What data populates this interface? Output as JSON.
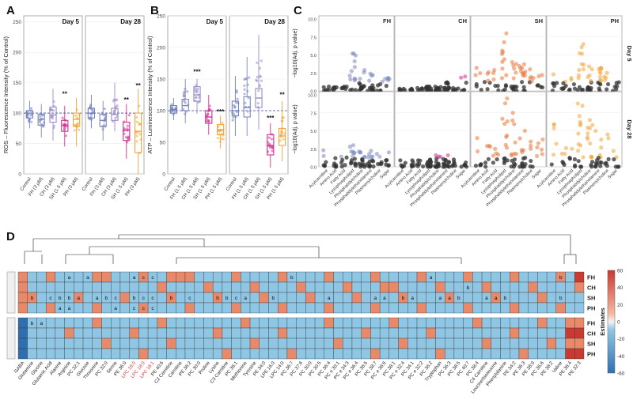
{
  "panel_letters": [
    "A",
    "B",
    "C",
    "D"
  ],
  "colors": {
    "Control": "#6f7fc0",
    "FH": "#7b86bd",
    "CH": "#9a8cc7",
    "SH": "#d0328f",
    "PH": "#f0a63a",
    "SH_ox": "#e8783b",
    "heat_pos": "#e8896a",
    "heat_neg": "#8fc6e3",
    "heat_strong_pos": "#c93a30",
    "heat_strong_neg": "#2f6fb0",
    "label_red": "#d23a3a"
  },
  "chart_data": [
    {
      "panel": "A",
      "type": "scatter",
      "ylabel": "ROS – Fluorescence Intensity (% of Control)",
      "ylim": [
        0,
        260
      ],
      "yticks": [
        0,
        50,
        100,
        150,
        200,
        250
      ],
      "facets": [
        "Day 5",
        "Day 28"
      ],
      "categories": [
        "Control",
        "FH (3 µM)",
        "CH (3 µM)",
        "SH (1.5 µM)",
        "PH (3 µM)"
      ],
      "reference_line": 100,
      "significance": [
        {
          "facet": "Day 5",
          "category": "SH (1.5 µM)",
          "label": "**",
          "y": 128
        },
        {
          "facet": "Day 28",
          "category": "SH (1.5 µM)",
          "label": "**",
          "y": 118
        },
        {
          "facet": "Day 28",
          "category": "PH (3 µM)",
          "label": "**",
          "y": 142
        }
      ],
      "boxes": {
        "Day 5": [
          {
            "category": "Control",
            "q1": 92,
            "median": 100,
            "q3": 104,
            "min": 75,
            "max": 120
          },
          {
            "category": "FH (3 µM)",
            "q1": 80,
            "median": 90,
            "q3": 98,
            "min": 60,
            "max": 115
          },
          {
            "category": "CH (3 µM)",
            "q1": 85,
            "median": 97,
            "q3": 110,
            "min": 55,
            "max": 140
          },
          {
            "category": "SH (1.5 µM)",
            "q1": 70,
            "median": 80,
            "q3": 88,
            "min": 45,
            "max": 112
          },
          {
            "category": "PH (3 µM)",
            "q1": 78,
            "median": 90,
            "q3": 100,
            "min": 45,
            "max": 125
          }
        ],
        "Day 28": [
          {
            "category": "Control",
            "q1": 92,
            "median": 100,
            "q3": 108,
            "min": 75,
            "max": 130
          },
          {
            "category": "FH (3 µM)",
            "q1": 78,
            "median": 88,
            "q3": 98,
            "min": 55,
            "max": 120
          },
          {
            "category": "CH (3 µM)",
            "q1": 88,
            "median": 98,
            "q3": 108,
            "min": 70,
            "max": 150
          },
          {
            "category": "SH (1.5 µM)",
            "q1": 55,
            "median": 72,
            "q3": 85,
            "min": 25,
            "max": 115
          },
          {
            "category": "PH (3 µM)",
            "q1": 35,
            "median": 70,
            "q3": 100,
            "min": 0,
            "max": 140
          }
        ]
      }
    },
    {
      "panel": "B",
      "type": "scatter",
      "ylabel": "ATP – Luminescence Intensity (% of Control)",
      "ylim": [
        0,
        250
      ],
      "yticks": [
        0,
        50,
        100,
        150,
        200,
        250
      ],
      "facets": [
        "Day 5",
        "Day 28"
      ],
      "categories": [
        "Control",
        "FH (1.5 µM)",
        "CH (1.5 µM)",
        "SH (1.5 µM)",
        "PH (1.5 µM)"
      ],
      "reference_line": 100,
      "significance": [
        {
          "facet": "Day 5",
          "category": "CH (1.5 µM)",
          "label": "***",
          "y": 158
        },
        {
          "facet": "Day 5",
          "category": "PH (1.5 µM)",
          "label": "***",
          "y": 95
        },
        {
          "facet": "Day 28",
          "category": "SH (1.5 µM)",
          "label": "***",
          "y": 85
        },
        {
          "facet": "Day 28",
          "category": "PH (1.5 µM)",
          "label": "**",
          "y": 122
        }
      ],
      "boxes": {
        "Day 5": [
          {
            "category": "Control",
            "q1": 96,
            "median": 102,
            "q3": 108,
            "min": 85,
            "max": 120
          },
          {
            "category": "FH (1.5 µM)",
            "q1": 100,
            "median": 108,
            "q3": 118,
            "min": 80,
            "max": 150
          },
          {
            "category": "CH (1.5 µM)",
            "q1": 115,
            "median": 125,
            "q3": 138,
            "min": 95,
            "max": 150
          },
          {
            "category": "SH (1.5 µM)",
            "q1": 80,
            "median": 90,
            "q3": 100,
            "min": 62,
            "max": 125
          },
          {
            "category": "PH (1.5 µM)",
            "q1": 62,
            "median": 70,
            "q3": 78,
            "min": 40,
            "max": 92
          }
        ],
        "Day 28": [
          {
            "category": "Control",
            "q1": 92,
            "median": 100,
            "q3": 115,
            "min": 60,
            "max": 155
          },
          {
            "category": "FH (1.5 µM)",
            "q1": 90,
            "median": 105,
            "q3": 122,
            "min": 60,
            "max": 185
          },
          {
            "category": "CH (1.5 µM)",
            "q1": 105,
            "median": 120,
            "q3": 135,
            "min": 70,
            "max": 220
          },
          {
            "category": "SH (1.5 µM)",
            "q1": 30,
            "median": 45,
            "q3": 62,
            "min": 10,
            "max": 80
          },
          {
            "category": "PH (1.5 µM)",
            "q1": 45,
            "median": 60,
            "q3": 72,
            "min": 20,
            "max": 115
          }
        ]
      }
    },
    {
      "panel": "C",
      "type": "scatter",
      "ylabel": "−log10(Adj. p value)",
      "ylim": [
        0,
        10
      ],
      "yticks": [
        0,
        2.5,
        5,
        7.5,
        10
      ],
      "columns": [
        "FH",
        "CH",
        "SH",
        "PH"
      ],
      "rows": [
        "Day 5",
        "Day 28"
      ],
      "categories": [
        "Acylcarnitine",
        "Amino Acid",
        "Fatty Acid",
        "Lysophospholipid",
        "Phosphatidylcholine",
        "Phosphatidylethanolamine",
        "Plasmenylcholine",
        "Sugar"
      ],
      "max_values": {
        "Day 5": {
          "FH": [
            0.6,
            0.5,
            0.6,
            5.2,
            2.9,
            2.4,
            1.3,
            1.8
          ],
          "CH": [
            0.3,
            0.3,
            0.4,
            0.6,
            0.6,
            1.2,
            0.4,
            2.0
          ],
          "SH": [
            3.2,
            2.6,
            2.9,
            8.0,
            4.0,
            3.7,
            3.0,
            2.2
          ],
          "PH": [
            2.3,
            1.3,
            1.8,
            6.5,
            3.4,
            3.2,
            2.5,
            1.2
          ]
        },
        "Day 28": {
          "FH": [
            2.3,
            1.2,
            1.4,
            3.0,
            2.1,
            2.2,
            1.8,
            2.0
          ],
          "CH": [
            0.9,
            0.9,
            0.9,
            1.0,
            1.6,
            1.6,
            1.0,
            0.6
          ],
          "SH": [
            4.0,
            2.9,
            2.5,
            9.5,
            7.5,
            5.0,
            3.5,
            3.8
          ],
          "PH": [
            5.9,
            2.6,
            2.5,
            8.8,
            6.5,
            5.0,
            4.5,
            2.2
          ]
        }
      }
    },
    {
      "panel": "D",
      "type": "heatmap",
      "legend_title": "Estimates",
      "legend_ticks": [
        60,
        40,
        20,
        0,
        -20,
        -40,
        -60
      ],
      "row_groups": [
        "Day 5",
        "Day 28"
      ],
      "rows": [
        "FH",
        "CH",
        "SH",
        "PH"
      ],
      "columns": [
        "GABA",
        "Glutamine",
        "Glycine",
        "Glutamic Acid",
        "Alanine",
        "Arginine",
        "PC 32:1",
        "Glucose",
        "Threonine",
        "PC 32:0",
        "Serine",
        "PE 36:0",
        "LPC 16:0",
        "LPC 18:0",
        "LPC 18:1",
        "PE 40:6",
        "C2 Carnitine",
        "Carnitine",
        "PE 36:2",
        "PC 30:0",
        "Proline",
        "Lysine",
        "C3 Carnitine",
        "PC 36:1",
        "Methionine",
        "Tyrosine",
        "PE 34:0",
        "LPE 16:0",
        "LPC 14:0",
        "PC 36:7",
        "PC 37:6",
        "PC 30:0",
        "PC 30:5",
        "PC 36:4",
        "PC e 30:1",
        "PC e 34:3",
        "PC e 36:4",
        "PC 36:5",
        "PC 38:7",
        "PC e 38:6",
        "PC 38:1",
        "PC e 32:4",
        "PC 34:1",
        "PC e 32:2",
        "PC 36:2",
        "Tryptophan",
        "PC 36:3",
        "PC 38:5",
        "PC 40:7",
        "PC 38:4",
        "C4 Carnitine",
        "Leucine/Isoleucine",
        "Phenylalanine",
        "PE 34:2",
        "PE 36:3",
        "PE 28:0",
        "PC 36:6",
        "PE 38:2",
        "Valine",
        "PE 36:4",
        "PE 32:3"
      ],
      "red_columns": [
        "LPC 16:0",
        "LPC 18:0",
        "LPC 18:1"
      ],
      "heat_rows": [
        "6111111119111111661111111111111111111111111111111111111111113",
        "6111111111111111111111111111111111111116111111111111111111111",
        "6111111111111111111111111111111111111111111111111111111111111",
        "6111111111111111111111111111111111111111111111111111111111111",
        "0000000000000000000000000000000000000000000000000000000000000",
        "0000000000000000000000000000000000000000000000000000000000000",
        "0000000000000000000000000000000000000000000000000000000000000",
        "0000000000000000000000000000000000000000000000000000000000000"
      ],
      "cell_letters": {
        "Day 5": {
          "FH": [
            "",
            "",
            "",
            "",
            "",
            "a",
            "",
            "a",
            "",
            "",
            "",
            "",
            "a",
            "c",
            "c",
            "",
            "",
            "",
            "",
            "",
            "",
            "",
            "",
            "",
            "",
            "",
            "",
            "",
            "",
            "b",
            "",
            "",
            "",
            "",
            "",
            "",
            "",
            "",
            "",
            "",
            "",
            "",
            "",
            "",
            "a",
            "",
            "",
            "",
            "",
            "",
            "",
            "",
            "",
            "",
            "",
            "",
            "",
            "",
            "b",
            "",
            ""
          ],
          "CH": [
            "",
            "",
            "",
            "",
            "",
            "",
            "",
            "",
            "",
            "",
            "",
            "",
            "",
            "",
            "",
            "",
            "",
            "",
            "",
            "",
            "",
            "",
            "",
            "",
            "",
            "",
            "",
            "",
            "",
            "",
            "",
            "",
            "",
            "",
            "",
            "",
            "",
            "",
            "",
            "",
            "",
            "",
            "",
            "",
            "",
            "",
            "",
            "",
            "b",
            "",
            "",
            "",
            "",
            "",
            "",
            "",
            "",
            "",
            "",
            "",
            ""
          ],
          "SH": [
            "",
            "b",
            "",
            "c",
            "b",
            "b",
            "a",
            "",
            "a",
            "b",
            "c",
            "",
            "b",
            "c",
            "c",
            "",
            "b",
            "",
            "c",
            "",
            "",
            "b",
            "b",
            "c",
            "a",
            "",
            "",
            "b",
            "",
            "",
            "",
            "",
            "",
            "a",
            "",
            "",
            "",
            "",
            "a",
            "a",
            "",
            "b",
            "a",
            "",
            "",
            "a",
            "a",
            "b",
            "",
            "",
            "a",
            "a",
            "b",
            "",
            "",
            "",
            "",
            "",
            "b",
            "",
            ""
          ],
          "PH": [
            "",
            "",
            "",
            "",
            "a",
            "a",
            "",
            "",
            "",
            "",
            "a",
            "",
            "c",
            "c",
            "c",
            "",
            "",
            "",
            "",
            "",
            "",
            "",
            "",
            "",
            "",
            "",
            "",
            "",
            "",
            "",
            "",
            "",
            "",
            "",
            "",
            "",
            "",
            "",
            "",
            "",
            "",
            "",
            "",
            "",
            "",
            "",
            "",
            "",
            "",
            "",
            "",
            "",
            "",
            "",
            "",
            "",
            "",
            "",
            "",
            "",
            ""
          ]
        },
        "Day 28": {
          "FH": [
            "",
            "b",
            "a",
            "",
            "",
            "",
            "",
            "",
            "",
            "",
            "",
            "",
            "",
            "",
            "",
            "",
            "",
            "",
            "",
            "",
            "",
            "",
            "",
            "",
            "",
            "",
            "",
            "",
            "",
            "",
            "",
            "",
            "",
            "",
            "",
            "",
            "",
            "",
            "",
            "",
            "",
            "",
            "",
            "",
            "",
            "",
            "",
            "",
            "",
            "",
            "",
            "",
            "",
            "",
            "",
            "",
            "",
            "",
            "",
            "",
            ""
          ],
          "CH": [
            "",
            "",
            "",
            "",
            "",
            "",
            "",
            "",
            "",
            "",
            "",
            "",
            "",
            "",
            "",
            "",
            "",
            "",
            "",
            "",
            "",
            "",
            "",
            "",
            "",
            "",
            "",
            "",
            "",
            "",
            "",
            "",
            "",
            "",
            "",
            "",
            "",
            "",
            "",
            "",
            "",
            "",
            "",
            "",
            "",
            "",
            "",
            "",
            "",
            "",
            "",
            "",
            "",
            "",
            "",
            "",
            "",
            "",
            "",
            "",
            ""
          ],
          "SH": [
            "",
            "",
            "",
            "",
            "",
            "",
            "",
            "",
            "",
            "",
            "",
            "",
            "",
            "",
            "",
            "",
            "",
            "",
            "",
            "",
            "",
            "",
            "",
            "",
            "",
            "",
            "",
            "",
            "",
            "",
            "",
            "",
            "",
            "",
            "",
            "",
            "",
            "",
            "",
            "",
            "",
            "",
            "",
            "",
            "",
            "",
            "",
            "",
            "",
            "",
            "",
            "",
            "",
            "",
            "",
            "",
            "",
            "",
            "",
            "",
            ""
          ],
          "PH": [
            "",
            "",
            "",
            "",
            "",
            "",
            "",
            "",
            "",
            "",
            "",
            "",
            "",
            "",
            "",
            "",
            "",
            "",
            "",
            "",
            "",
            "",
            "",
            "",
            "",
            "",
            "",
            "",
            "",
            "",
            "",
            "",
            "",
            "",
            "",
            "",
            "",
            "",
            "",
            "",
            "",
            "",
            "",
            "",
            "",
            "",
            "",
            "",
            "",
            "",
            "",
            "",
            "",
            "",
            "",
            "",
            "",
            "",
            "",
            "",
            ""
          ]
        }
      }
    }
  ]
}
